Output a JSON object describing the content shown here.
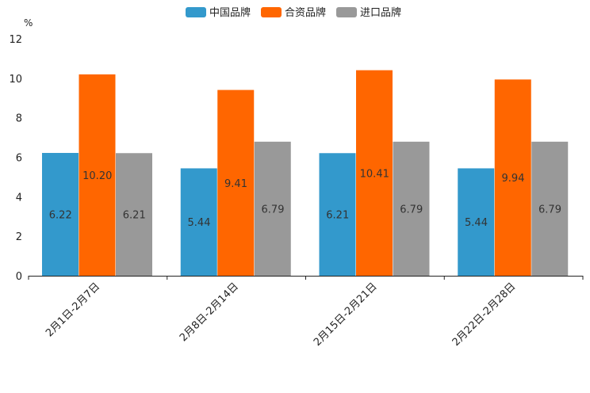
{
  "chart_data": {
    "type": "bar",
    "title": "",
    "xlabel": "",
    "ylabel": "%",
    "ylim": [
      0,
      12
    ],
    "yticks": [
      "0",
      "2",
      "4",
      "6",
      "8",
      "10",
      "12"
    ],
    "legend_position": "top-center",
    "categories": [
      "2月1日-2月7日",
      "2月8日-2月14日",
      "2月15日-2月21日",
      "2月22日-2月28日"
    ],
    "series": [
      {
        "name": "中国品牌",
        "color": "#3399CC",
        "values": [
          6.22,
          5.44,
          6.21,
          5.44
        ],
        "labels": [
          "6.22",
          "5.44",
          "6.21",
          "5.44"
        ]
      },
      {
        "name": "合资品牌",
        "color": "#FF6600",
        "values": [
          10.2,
          9.41,
          10.41,
          9.94
        ],
        "labels": [
          "10.20",
          "9.41",
          "10.41",
          "9.94"
        ]
      },
      {
        "name": "进口品牌",
        "color": "#999999",
        "values": [
          6.21,
          6.79,
          6.79,
          6.79
        ],
        "labels": [
          "6.21",
          "6.79",
          "6.79",
          "6.79"
        ]
      }
    ]
  }
}
